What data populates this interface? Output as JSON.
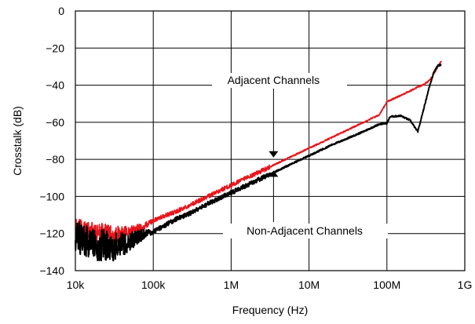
{
  "chart_data": {
    "type": "line",
    "xlabel": "Frequency (Hz)",
    "ylabel": "Crosstalk (dB)",
    "x_scale": "log",
    "xlim": [
      10000,
      1000000000
    ],
    "ylim": [
      -140,
      0
    ],
    "grid": true,
    "x_ticks": [
      {
        "value": 10000,
        "label": "10k"
      },
      {
        "value": 100000,
        "label": "100k"
      },
      {
        "value": 1000000,
        "label": "1M"
      },
      {
        "value": 10000000,
        "label": "10M"
      },
      {
        "value": 100000000,
        "label": "100M"
      },
      {
        "value": 1000000000,
        "label": "1G"
      }
    ],
    "y_ticks": [
      {
        "value": 0,
        "label": "0"
      },
      {
        "value": -20,
        "label": "−20"
      },
      {
        "value": -40,
        "label": "−40"
      },
      {
        "value": -60,
        "label": "−60"
      },
      {
        "value": -80,
        "label": "−80"
      },
      {
        "value": -100,
        "label": "−100"
      },
      {
        "value": -120,
        "label": "−120"
      },
      {
        "value": -140,
        "label": "−140"
      }
    ],
    "series": [
      {
        "name": "Adjacent Channels",
        "color": "#e8141b",
        "x": [
          10000,
          15000,
          20000,
          30000,
          40000,
          50000,
          70000,
          100000,
          150000,
          200000,
          300000,
          500000,
          700000,
          1000000,
          2000000,
          3000000,
          5000000,
          10000000,
          20000000,
          30000000,
          50000000,
          80000000,
          100000000,
          150000000,
          200000000,
          250000000,
          300000000,
          350000000,
          400000000,
          450000000,
          500000000
        ],
        "y": [
          -117,
          -118,
          -120,
          -121,
          -120,
          -119,
          -117,
          -113,
          -110,
          -108,
          -104.5,
          -100,
          -97,
          -94,
          -88,
          -84.5,
          -80,
          -74,
          -68,
          -64.5,
          -60,
          -56,
          -49,
          -45.5,
          -43,
          -41,
          -39.5,
          -37.5,
          -34,
          -30,
          -27
        ]
      },
      {
        "name": "Non-Adjacent Channels",
        "color": "#000000",
        "x": [
          10000,
          15000,
          20000,
          30000,
          40000,
          50000,
          70000,
          100000,
          150000,
          200000,
          300000,
          500000,
          700000,
          1000000,
          2000000,
          3000000,
          5000000,
          10000000,
          20000000,
          30000000,
          50000000,
          80000000,
          100000000,
          110000000,
          150000000,
          200000000,
          230000000,
          250000000,
          300000000,
          350000000,
          400000000,
          450000000,
          500000000
        ],
        "y": [
          -122,
          -124,
          -126,
          -127,
          -126,
          -124,
          -121,
          -119,
          -115,
          -112,
          -109,
          -104,
          -101,
          -98,
          -92,
          -88.5,
          -84,
          -78,
          -72,
          -69,
          -65,
          -61,
          -60.5,
          -57,
          -56.5,
          -59,
          -63,
          -65,
          -52,
          -41,
          -33,
          -29.5,
          -29
        ]
      }
    ],
    "annotations": [
      {
        "text": "Adjacent Channels",
        "arrow_to": {
          "x": 3500000,
          "y": -79
        },
        "arrow_direction": "down"
      },
      {
        "text": "Non-Adjacent Channels",
        "arrow_to": {
          "x": 3500000,
          "y": -86
        },
        "arrow_direction": "up"
      }
    ]
  }
}
